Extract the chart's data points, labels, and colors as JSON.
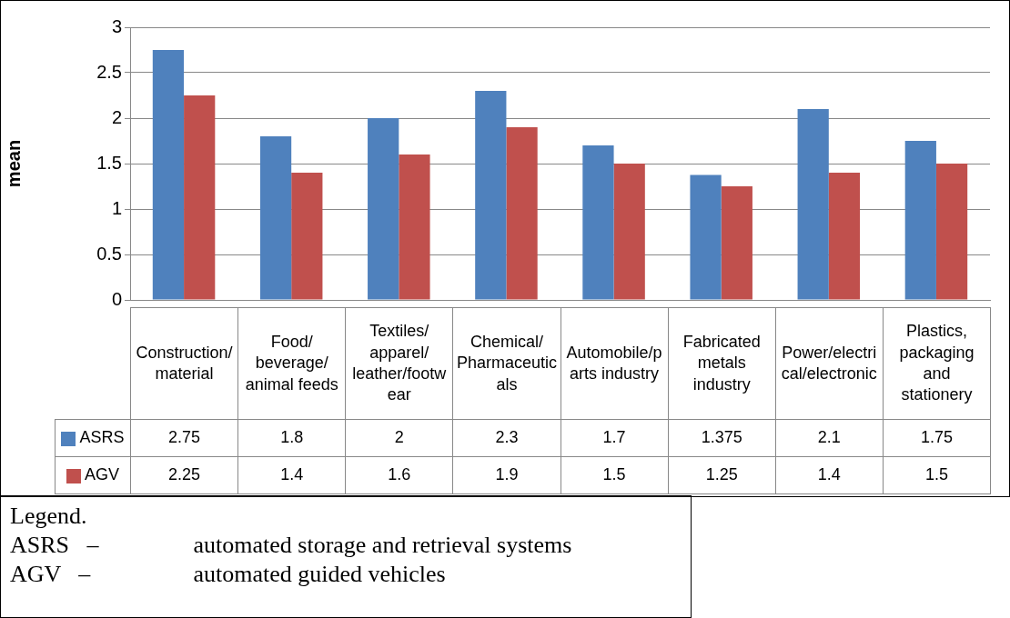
{
  "chart_data": {
    "type": "bar",
    "ylabel": "mean",
    "categories": [
      "Construction/ material",
      "Food/ beverage/ animal feeds",
      "Textiles/ apparel/ leather/footwear",
      "Chemical/ Pharmaceuticals",
      "Automobile/parts industry",
      "Fabricated metals industry",
      "Power/electrical/electronic",
      "Plastics, packaging and stationery"
    ],
    "series": [
      {
        "name": "ASRS",
        "color": "#4f81bd",
        "values": [
          2.75,
          1.8,
          2,
          2.3,
          1.7,
          1.375,
          2.1,
          1.75
        ]
      },
      {
        "name": "AGV",
        "color": "#c0504d",
        "values": [
          2.25,
          1.4,
          1.6,
          1.9,
          1.5,
          1.25,
          1.4,
          1.5
        ]
      }
    ],
    "ylim": [
      0,
      3
    ],
    "yticks": [
      0,
      0.5,
      1,
      1.5,
      2,
      2.5,
      3
    ],
    "grid": "y",
    "legend": "bottom",
    "data_labels": true,
    "annotations": [
      "Legend.",
      "ASRS – automated storage and retrieval systems",
      "AGV – automated guided vehicles"
    ]
  }
}
